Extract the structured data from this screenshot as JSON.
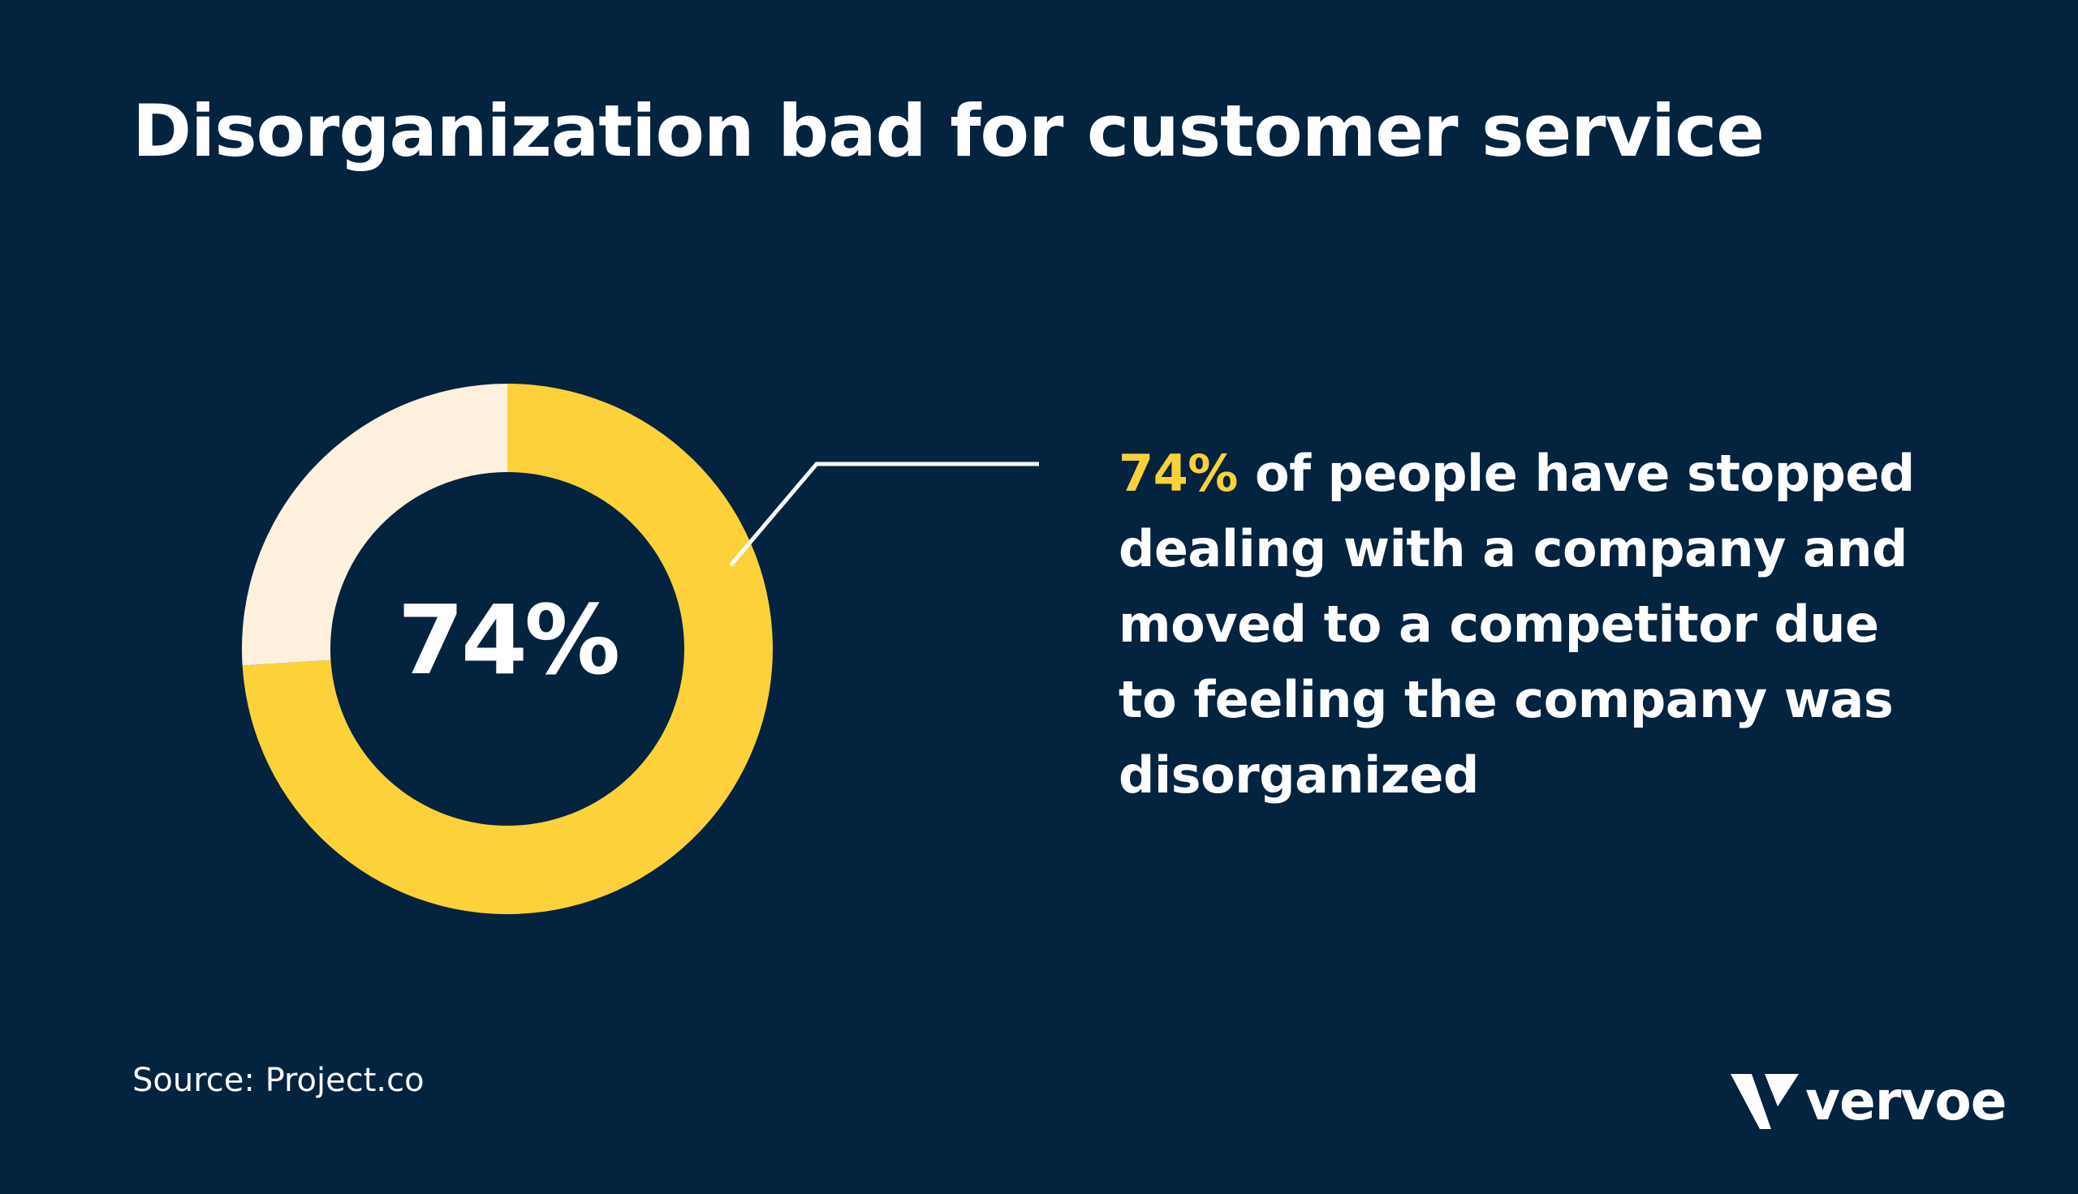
{
  "title": "Disorganization bad for customer service",
  "callout": {
    "highlight": "74%",
    "text": "of people have stopped dealing with a company and moved to a competitor due to feeling the company was disorganized"
  },
  "source": "Source: Project.co",
  "logo": {
    "name": "vervoe",
    "icon": "vervoe-v-logo-icon"
  },
  "colors": {
    "background": "#03233f",
    "accent": "#fdd13a",
    "remainder": "#fdf0dc",
    "text": "#ffffff"
  },
  "chart_data": {
    "type": "pie",
    "variant": "donut",
    "title": "",
    "slices": [
      {
        "label": "74%",
        "value": 74,
        "color": "#fdd13a"
      },
      {
        "label": "",
        "value": 26,
        "color": "#fdf0dc"
      }
    ],
    "center_label": "74%"
  }
}
